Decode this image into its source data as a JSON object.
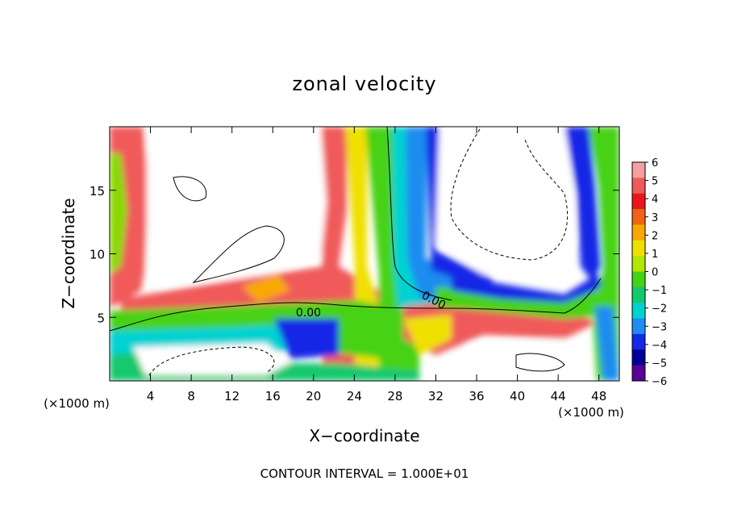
{
  "chart_data": {
    "type": "heatmap",
    "title": "zonal velocity",
    "xlabel": "X−coordinate",
    "ylabel": "Z−coordinate",
    "x_unit_left": "(×1000 m)",
    "x_unit_right": "(×1000 m)",
    "xlim": [
      0,
      50
    ],
    "ylim": [
      0,
      20
    ],
    "x_ticks": [
      4,
      8,
      12,
      16,
      20,
      24,
      28,
      32,
      36,
      40,
      44,
      48
    ],
    "y_ticks": [
      5,
      10,
      15
    ],
    "colorbar": {
      "vmin": -6,
      "vmax": 6,
      "ticks": [
        6,
        5,
        4,
        3,
        2,
        1,
        0,
        -1,
        -2,
        -3,
        -4,
        -5,
        -6
      ],
      "tick_labels": [
        "6",
        "5",
        "4",
        "3",
        "2",
        "1",
        "0",
        "−1",
        "−2",
        "−3",
        "−4",
        "−5",
        "−6"
      ],
      "colors": [
        "#f4a0a0",
        "#f05a5a",
        "#e81818",
        "#f06414",
        "#f8a800",
        "#f0e000",
        "#b4e600",
        "#46d216",
        "#14c86e",
        "#00d2d2",
        "#1e8cf0",
        "#1428e6",
        "#000096",
        "#5a0096"
      ]
    },
    "contour_labels": [
      {
        "text": "0.00",
        "x": 19.5,
        "z": 5.2
      },
      {
        "text": "0.00",
        "x": 31.7,
        "z": 6.2
      }
    ],
    "footer": "CONTOUR INTERVAL = 1.000E+01"
  }
}
